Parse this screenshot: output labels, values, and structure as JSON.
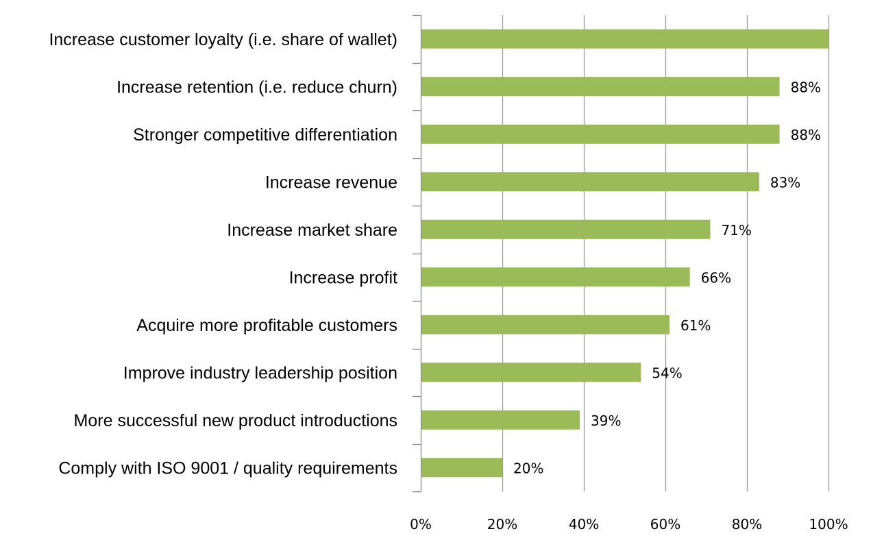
{
  "chart_data": {
    "type": "bar",
    "orientation": "horizontal",
    "title": "",
    "xlabel": "",
    "ylabel": "",
    "categories": [
      "Increase customer loyalty (i.e. share of wallet)",
      "Increase retention (i.e. reduce churn)",
      "Stronger competitive differentiation",
      "Increase revenue",
      "Increase market share",
      "Increase profit",
      "Acquire more profitable customers",
      "Improve industry leadership position",
      "More successful new product introductions",
      "Comply with ISO 9001 / quality requirements"
    ],
    "values": [
      100,
      88,
      88,
      83,
      71,
      66,
      61,
      54,
      39,
      20
    ],
    "data_labels": [
      "",
      "88%",
      "88%",
      "83%",
      "71%",
      "66%",
      "61%",
      "54%",
      "39%",
      "20%"
    ],
    "xlim": [
      0,
      100
    ],
    "x_ticks": [
      0,
      20,
      40,
      60,
      80,
      100
    ],
    "x_tick_labels": [
      "0%",
      "20%",
      "40%",
      "60%",
      "80%",
      "100%"
    ],
    "grid": "vertical",
    "bar_color": "#9bbb59",
    "grid_color": "#999999"
  }
}
